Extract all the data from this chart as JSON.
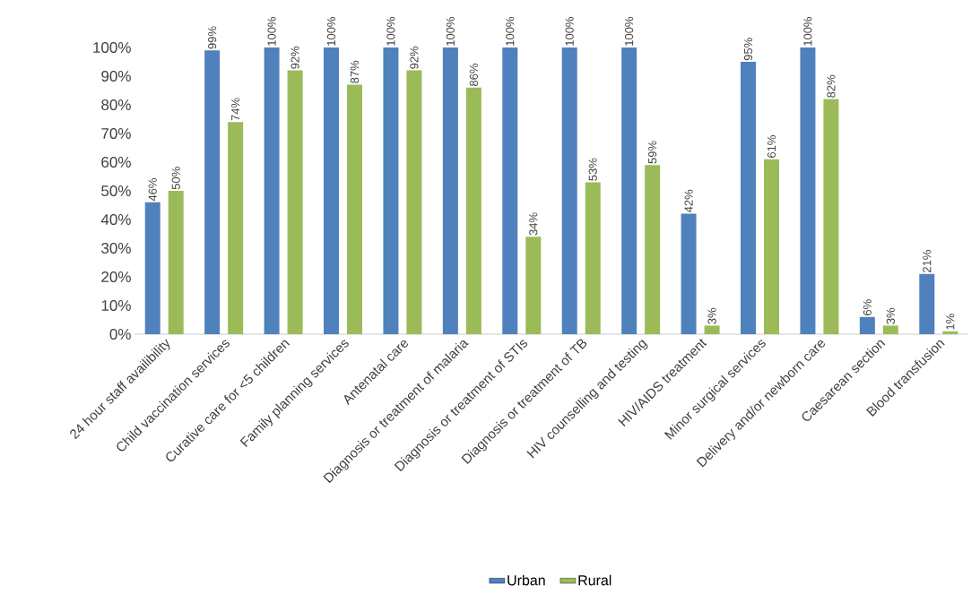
{
  "chart_data": {
    "type": "bar",
    "categories": [
      "24 hour staff availibility",
      "Child vaccination services",
      "Curative care for <5 children",
      "Family planning services",
      "Antenatal care",
      "Diagnosis or treatment of malaria",
      "Diagnosis or treatment of STIs",
      "Diagnosis or treatment of TB",
      "HIV counselling and testing",
      "HIV/AIDS treatment",
      "Minor surgical services",
      "Delivery and/or newborn care",
      "Caesarean section",
      "Blood transfusion"
    ],
    "series": [
      {
        "name": "Urban",
        "color": "#4f81bd",
        "values": [
          46,
          99,
          100,
          100,
          100,
          100,
          100,
          100,
          100,
          42,
          95,
          100,
          6,
          21
        ],
        "value_labels": [
          "46%",
          "99%",
          "100%",
          "100%",
          "100%",
          "100%",
          "100%",
          "100%",
          "100%",
          "42%",
          "95%",
          "100%",
          "6%",
          "21%"
        ]
      },
      {
        "name": "Rural",
        "color": "#9bbb59",
        "values": [
          50,
          74,
          92,
          87,
          92,
          86,
          34,
          53,
          59,
          3,
          61,
          82,
          3,
          1
        ],
        "value_labels": [
          "50%",
          "74%",
          "92%",
          "87%",
          "92%",
          "86%",
          "34%",
          "53%",
          "59%",
          "3%",
          "61%",
          "82%",
          "3%",
          "1%"
        ]
      }
    ],
    "ylim": [
      0,
      100
    ],
    "yticks": [
      {
        "value": 0,
        "label": "0%"
      },
      {
        "value": 10,
        "label": "10%"
      },
      {
        "value": 20,
        "label": "20%"
      },
      {
        "value": 30,
        "label": "30%"
      },
      {
        "value": 40,
        "label": "40%"
      },
      {
        "value": 50,
        "label": "50%"
      },
      {
        "value": 60,
        "label": "60%"
      },
      {
        "value": 70,
        "label": "70%"
      },
      {
        "value": 80,
        "label": "80%"
      },
      {
        "value": 90,
        "label": "90%"
      },
      {
        "value": 100,
        "label": "100%"
      }
    ],
    "legend": "bottom"
  }
}
